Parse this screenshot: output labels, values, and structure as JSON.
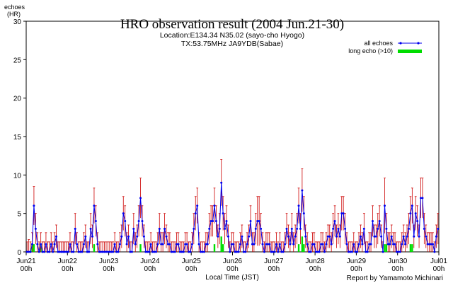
{
  "chart_data": {
    "type": "line",
    "title": "HRO observation result (2004 Jun.21-30)",
    "subtitle_lines": [
      "Location:E134.34 N35.02 (sayo-cho Hyogo)",
      "TX:53.75MHz JA9YDB(Sabae)"
    ],
    "ylabel_lines": [
      "echoes",
      "(HR)"
    ],
    "xlabel": "Local Time (JST)",
    "credit": "Report by Yamamoto Michinari",
    "ylim": [
      0,
      30
    ],
    "y_ticks": [
      0,
      5,
      10,
      15,
      20,
      25,
      30
    ],
    "x_range_hours": [
      0,
      240
    ],
    "x_ticks": [
      {
        "date": "Jun21",
        "time": "00h"
      },
      {
        "date": "Jun22",
        "time": "00h"
      },
      {
        "date": "Jun23",
        "time": "00h"
      },
      {
        "date": "Jun24",
        "time": "00h"
      },
      {
        "date": "Jun25",
        "time": "00h"
      },
      {
        "date": "Jun26",
        "time": "00h"
      },
      {
        "date": "Jun27",
        "time": "00h"
      },
      {
        "date": "Jun28",
        "time": "00h"
      },
      {
        "date": "Jun29",
        "time": "00h"
      },
      {
        "date": "Jun30",
        "time": "00h"
      },
      {
        "date": "Jul01",
        "time": "00h"
      }
    ],
    "legend_position": "top-right",
    "series": [
      {
        "name": "all echoes",
        "color": "#0000ee",
        "style": "line-with-markers-and-error-bars",
        "error_color": "#cc0000",
        "values": [
          0,
          0,
          0,
          1,
          6,
          3,
          1,
          0,
          1,
          0,
          0,
          1,
          0,
          0,
          1,
          0,
          1,
          2,
          0,
          0,
          0,
          0,
          0,
          0,
          0,
          1,
          0,
          0,
          3,
          1,
          0,
          0,
          0,
          1,
          2,
          0,
          0,
          3,
          2,
          6,
          4,
          1,
          0,
          0,
          0,
          0,
          0,
          0,
          0,
          0,
          0,
          1,
          0,
          0,
          1,
          2,
          5,
          4,
          1,
          2,
          0,
          0,
          3,
          1,
          2,
          4,
          7,
          4,
          2,
          0,
          0,
          0,
          1,
          0,
          0,
          0,
          1,
          3,
          1,
          1,
          3,
          2,
          1,
          1,
          0,
          0,
          0,
          1,
          1,
          0,
          0,
          0,
          1,
          1,
          0,
          0,
          1,
          3,
          5,
          6,
          1,
          0,
          0,
          0,
          1,
          1,
          3,
          4,
          4,
          6,
          4,
          2,
          3,
          9,
          5,
          3,
          4,
          2,
          0,
          1,
          1,
          0,
          0,
          0,
          1,
          2,
          0,
          0,
          1,
          2,
          4,
          1,
          1,
          3,
          4,
          4,
          3,
          1,
          0,
          1,
          1,
          1,
          0,
          0,
          0,
          1,
          0,
          1,
          0,
          0,
          1,
          3,
          2,
          1,
          3,
          1,
          2,
          3,
          6,
          3,
          8,
          5,
          2,
          1,
          0,
          0,
          1,
          1,
          0,
          0,
          0,
          1,
          1,
          0,
          1,
          2,
          2,
          1,
          3,
          4,
          2,
          3,
          2,
          5,
          5,
          3,
          1,
          0,
          0,
          0,
          1,
          0,
          0,
          1,
          2,
          1,
          3,
          0,
          0,
          1,
          1,
          4,
          2,
          2,
          3,
          4,
          2,
          0,
          6,
          3,
          1,
          1,
          2,
          1,
          1,
          0,
          0,
          0,
          1,
          2,
          1,
          2,
          3,
          5,
          6,
          2,
          5,
          4,
          2,
          7,
          7,
          3,
          2,
          1,
          1,
          1,
          1,
          0,
          2,
          3
        ],
        "upper_errors": [
          1.3,
          1.6,
          1.3,
          2.5,
          8.5,
          5.0,
          2.5,
          1.3,
          2.5,
          1.3,
          1.3,
          2.5,
          1.3,
          1.3,
          2.5,
          1.3,
          2.5,
          3.5,
          1.3,
          1.3,
          1.3,
          1.3,
          1.3,
          1.3,
          1.3,
          2.5,
          1.3,
          1.3,
          5.0,
          2.5,
          1.3,
          1.3,
          1.3,
          2.5,
          3.5,
          1.3,
          1.3,
          5.0,
          3.5,
          8.3,
          6.0,
          2.5,
          1.3,
          1.3,
          1.3,
          1.3,
          1.3,
          1.3,
          1.3,
          1.3,
          1.3,
          2.5,
          1.3,
          1.3,
          2.5,
          3.5,
          7.2,
          6.0,
          2.5,
          3.5,
          1.3,
          1.3,
          5.0,
          2.5,
          3.5,
          6.0,
          9.6,
          6.0,
          3.5,
          1.3,
          1.3,
          1.3,
          2.5,
          1.3,
          1.3,
          1.3,
          2.5,
          5.0,
          2.5,
          2.5,
          5.0,
          3.5,
          2.5,
          2.5,
          1.3,
          1.3,
          1.3,
          2.5,
          2.5,
          1.3,
          1.3,
          1.3,
          2.5,
          2.5,
          1.3,
          1.3,
          2.5,
          5.0,
          7.2,
          8.3,
          2.5,
          1.3,
          1.3,
          1.3,
          2.5,
          2.5,
          5.0,
          6.0,
          6.0,
          8.3,
          6.0,
          3.5,
          5.0,
          12.0,
          7.2,
          5.0,
          6.0,
          3.5,
          1.3,
          2.5,
          2.5,
          1.3,
          1.3,
          1.3,
          2.5,
          3.5,
          1.3,
          1.3,
          2.5,
          3.5,
          6.0,
          2.5,
          2.5,
          5.0,
          7.2,
          7.2,
          5.0,
          2.5,
          1.3,
          2.5,
          2.5,
          2.5,
          1.3,
          1.3,
          1.3,
          2.5,
          1.3,
          2.5,
          1.3,
          1.3,
          2.5,
          5.0,
          3.5,
          2.5,
          5.0,
          2.5,
          3.5,
          5.0,
          8.3,
          5.0,
          10.8,
          7.2,
          3.5,
          2.5,
          1.3,
          1.3,
          2.5,
          2.5,
          1.3,
          1.3,
          1.3,
          2.5,
          2.5,
          1.3,
          2.5,
          3.5,
          3.5,
          2.5,
          5.0,
          6.0,
          3.5,
          5.0,
          3.5,
          7.2,
          7.2,
          5.0,
          2.5,
          1.3,
          1.3,
          1.3,
          2.5,
          1.3,
          1.3,
          2.5,
          3.5,
          2.5,
          5.0,
          1.3,
          1.3,
          2.5,
          2.5,
          6.0,
          3.5,
          3.5,
          5.0,
          6.0,
          3.5,
          1.3,
          9.6,
          5.0,
          2.5,
          2.5,
          3.5,
          2.5,
          2.5,
          1.3,
          1.3,
          1.3,
          2.5,
          3.5,
          2.5,
          3.5,
          5.0,
          7.2,
          8.3,
          3.5,
          7.2,
          6.0,
          3.5,
          9.6,
          9.6,
          5.0,
          3.5,
          2.5,
          2.5,
          2.5,
          2.5,
          1.3,
          3.5,
          5.0
        ]
      },
      {
        "name": "long echo (>10)",
        "color": "#00dd00",
        "style": "bars",
        "values": [
          0,
          0,
          0,
          1,
          1,
          0,
          0,
          0,
          1,
          0,
          0,
          0,
          0,
          0,
          0,
          0,
          0,
          0,
          0,
          0,
          0,
          0,
          0,
          0,
          0,
          0,
          0,
          0,
          0,
          0,
          0,
          0,
          0,
          0,
          0,
          0,
          0,
          0,
          0,
          1,
          0,
          0,
          0,
          0,
          0,
          0,
          0,
          0,
          0,
          0,
          0,
          0,
          0,
          0,
          0,
          0,
          0,
          0,
          0,
          0,
          0,
          0,
          0,
          0,
          0,
          0,
          1,
          0,
          0,
          0,
          0,
          0,
          0,
          0,
          0,
          0,
          0,
          0,
          0,
          0,
          0,
          0,
          0,
          0,
          0,
          0,
          0,
          0,
          0,
          0,
          0,
          0,
          0,
          0,
          0,
          0,
          0,
          0,
          0,
          0,
          0,
          0,
          0,
          0,
          0,
          0,
          0,
          0,
          0,
          1,
          0,
          0,
          0,
          2,
          1,
          0,
          0,
          0,
          0,
          0,
          0,
          0,
          0,
          0,
          0,
          0,
          0,
          0,
          0,
          0,
          0,
          0,
          0,
          0,
          0,
          0,
          0,
          0,
          0,
          0,
          0,
          0,
          0,
          0,
          0,
          0,
          0,
          0,
          0,
          0,
          0,
          0,
          0,
          0,
          0,
          0,
          0,
          0,
          1,
          0,
          2,
          1,
          0,
          0,
          0,
          0,
          0,
          0,
          0,
          0,
          0,
          0,
          0,
          0,
          0,
          0,
          0,
          0,
          0,
          0,
          0,
          0,
          0,
          0,
          0,
          0,
          0,
          0,
          0,
          0,
          0,
          0,
          0,
          0,
          0,
          0,
          0,
          0,
          0,
          0,
          0,
          0,
          0,
          0,
          0,
          0,
          0,
          0,
          1,
          1,
          0,
          0,
          0,
          0,
          0,
          0,
          0,
          0,
          0,
          0,
          0,
          0,
          0,
          1,
          1,
          0,
          0,
          0,
          0,
          0,
          0,
          0,
          0,
          0,
          0,
          0,
          0,
          0,
          0,
          0
        ]
      }
    ]
  }
}
